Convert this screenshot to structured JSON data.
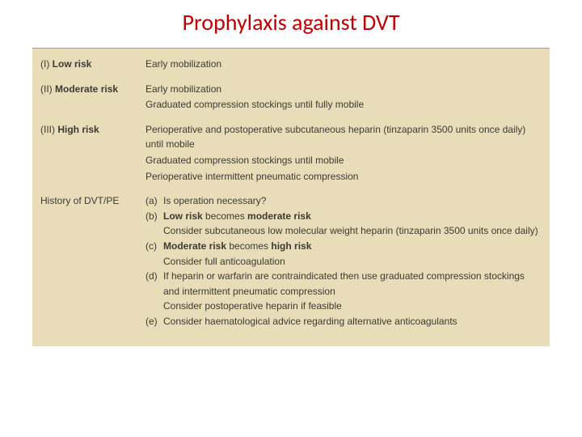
{
  "title": {
    "text": "Prophylaxis against DVT",
    "color": "#c00000",
    "fontsize": 28
  },
  "scan": {
    "background": "#e8dcb9",
    "text_color": "#3d3a33",
    "fontsize": 12
  },
  "rows": [
    {
      "label_prefix": "(I)",
      "label": "Low risk",
      "label_bold_part": "Low risk",
      "lines": [
        "Early mobilization"
      ],
      "spacer_after": true
    },
    {
      "label_prefix": "(II)",
      "label": "Moderate risk",
      "label_bold_part": "Moderate risk",
      "lines": [
        "Early mobilization",
        "Graduated compression stockings until fully mobile"
      ],
      "spacer_after": true
    },
    {
      "label_prefix": "(III)",
      "label": "High risk",
      "label_bold_part": "High risk",
      "lines": [
        "Perioperative and postoperative subcutaneous heparin (tinzaparin 3500 units once daily) until mobile",
        "Graduated compression stockings until mobile",
        "Perioperative intermittent pneumatic compression"
      ],
      "spacer_after": true
    }
  ],
  "history": {
    "label": "History of DVT/PE",
    "items": [
      {
        "marker": "(a)",
        "text": "Is operation necessary?"
      },
      {
        "marker": "(b)",
        "html": true,
        "pre": "Low risk",
        "mid": " becomes ",
        "post": "moderate risk"
      },
      {
        "marker": "",
        "text": "Consider subcutaneous low molecular weight heparin (tinzaparin 3500 units once daily)"
      },
      {
        "marker": "(c)",
        "html": true,
        "pre": "Moderate risk",
        "mid": " becomes ",
        "post": "high risk"
      },
      {
        "marker": "",
        "text": "Consider full anticoagulation"
      },
      {
        "marker": "(d)",
        "text": "If heparin or warfarin are contraindicated then use graduated compression stockings and intermittent pneumatic compression"
      },
      {
        "marker": "",
        "text": "Consider postoperative heparin if feasible"
      },
      {
        "marker": "(e)",
        "text": "Consider haematological advice regarding alternative anticoagulants"
      }
    ]
  }
}
